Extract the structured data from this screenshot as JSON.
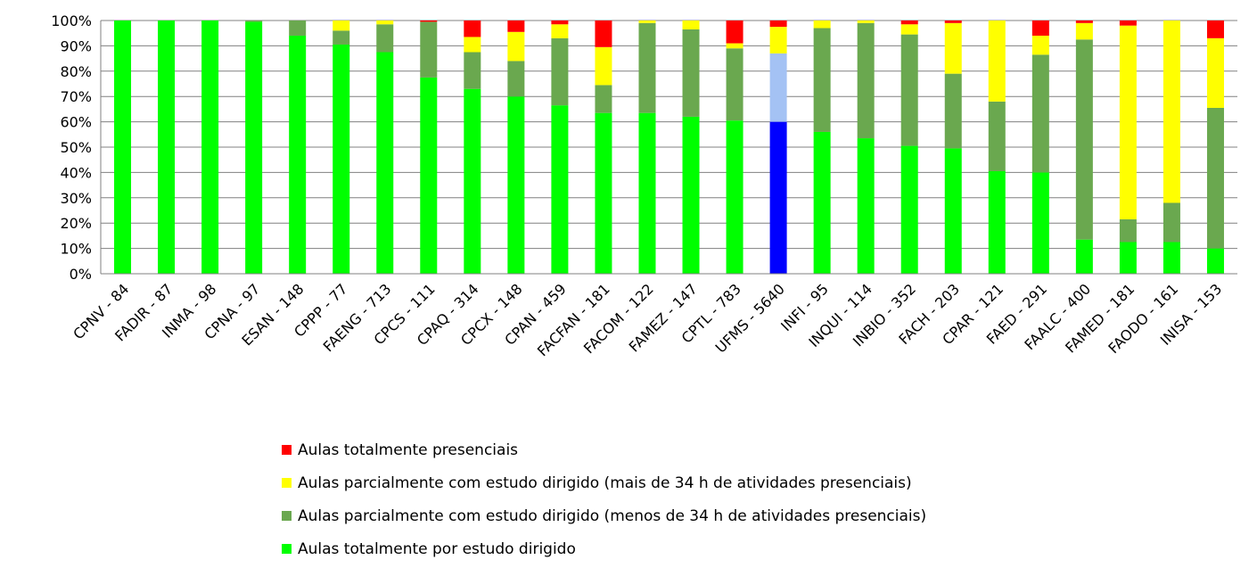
{
  "chart_data": {
    "type": "bar",
    "stacked": true,
    "percent": true,
    "ylim": [
      0,
      100
    ],
    "yticks": [
      "0%",
      "10%",
      "20%",
      "30%",
      "40%",
      "50%",
      "60%",
      "70%",
      "80%",
      "90%",
      "100%"
    ],
    "grid": true,
    "legend_position": "bottom",
    "categories": [
      "CPNV - 84",
      "FADIR - 87",
      "INMA - 98",
      "CPNA - 97",
      "ESAN - 148",
      "CPPP - 77",
      "FAENG - 713",
      "CPCS - 111",
      "CPAQ - 314",
      "CPCX - 148",
      "CPAN - 459",
      "FACFAN - 181",
      "FACOM - 122",
      "FAMEZ - 147",
      "CPTL - 783",
      "UFMS - 5640",
      "INFI - 95",
      "INQUI - 114",
      "INBIO - 352",
      "FACH - 203",
      "CPAR - 121",
      "FAED - 291",
      "FAALC - 400",
      "FAMED - 181",
      "FAODO - 161",
      "INISA - 153"
    ],
    "highlight_category": "UFMS - 5640",
    "series": [
      {
        "name": "Aulas totalmente por estudo dirigido",
        "color": "#00ff00",
        "highlight_color": "#0000ff",
        "values": [
          100,
          100,
          100,
          99.5,
          94,
          90.5,
          87.5,
          77.5,
          73,
          70,
          66.5,
          63.5,
          63.5,
          62,
          60.5,
          60,
          56,
          53.5,
          50.5,
          49.5,
          40.5,
          40,
          13.5,
          12.5,
          12.5,
          10
        ]
      },
      {
        "name": "Aulas parcialmente com estudo dirigido (menos de 34 h de atividades presenciais)",
        "color": "#6aa84f",
        "highlight_color": "#a4c2f4",
        "values": [
          0,
          0,
          0,
          0.5,
          6,
          5.5,
          11,
          22,
          14.5,
          14,
          26.5,
          11,
          35.5,
          34.5,
          28.5,
          27,
          41,
          45.5,
          44,
          29.5,
          27.5,
          46.5,
          79,
          9,
          15.5,
          55.5
        ]
      },
      {
        "name": "Aulas parcialmente com estudo dirigido (mais de 34 h de atividades presenciais)",
        "color": "#ffff00",
        "highlight_color": "#ffff00",
        "values": [
          0,
          0,
          0,
          0,
          0,
          4,
          1.5,
          0,
          6,
          11.5,
          5.5,
          15,
          1,
          3.5,
          2,
          10.5,
          3,
          1,
          4,
          20,
          32,
          7.5,
          6.5,
          76.5,
          72,
          27.5
        ]
      },
      {
        "name": "Aulas totalmente presenciais",
        "color": "#ff0000",
        "highlight_color": "#ff0000",
        "values": [
          0,
          0,
          0,
          0,
          0,
          0,
          0,
          0.5,
          6.5,
          4.5,
          1.5,
          10.5,
          0,
          0,
          9,
          2.5,
          0,
          0,
          1.5,
          1,
          0,
          6,
          1,
          2,
          0,
          7
        ]
      }
    ],
    "legend_order": [
      "Aulas totalmente presenciais",
      "Aulas parcialmente com estudo dirigido (mais de 34 h de atividades presenciais)",
      "Aulas parcialmente com estudo dirigido (menos de 34 h de atividades presenciais)",
      "Aulas totalmente por estudo dirigido"
    ]
  }
}
